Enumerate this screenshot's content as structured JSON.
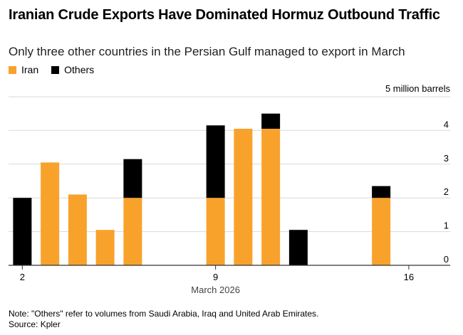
{
  "chart_data": {
    "type": "bar",
    "stacked": true,
    "title": "Iranian Crude Exports Have Dominated Hormuz Outbound Traffic",
    "subtitle": "Only three other countries in the Persian Gulf managed to export in March",
    "unit_label": "5 million barrels",
    "xlabel": "March 2026",
    "ylabel": "",
    "ylim": [
      0,
      5
    ],
    "yticks": [
      0,
      1,
      2,
      3,
      4
    ],
    "xlim": [
      1.5,
      17.5
    ],
    "xticks": [
      2,
      9,
      16
    ],
    "x": [
      2,
      3,
      4,
      5,
      6,
      7,
      8,
      9,
      10,
      11,
      12,
      13,
      14,
      15,
      16
    ],
    "series": [
      {
        "name": "Iran",
        "color": "#f8a22c",
        "values": [
          0,
          3.05,
          2.1,
          1.05,
          2.0,
          0,
          0,
          2.0,
          4.05,
          4.05,
          0,
          0,
          0,
          2.0,
          0
        ]
      },
      {
        "name": "Others",
        "color": "#000000",
        "values": [
          2.0,
          0,
          0,
          0,
          1.15,
          0,
          0,
          2.15,
          0,
          0.45,
          1.05,
          0,
          0,
          0.35,
          0
        ]
      }
    ],
    "legend_position": "top-left",
    "grid": true
  },
  "legend": {
    "items": [
      {
        "label": "Iran",
        "color": "#f8a22c"
      },
      {
        "label": "Others",
        "color": "#000000"
      }
    ]
  },
  "footer": {
    "note": "Note: \"Others\" refer to volumes from Saudi Arabia, Iraq and United Arab Emirates.",
    "source": "Source: Kpler"
  }
}
